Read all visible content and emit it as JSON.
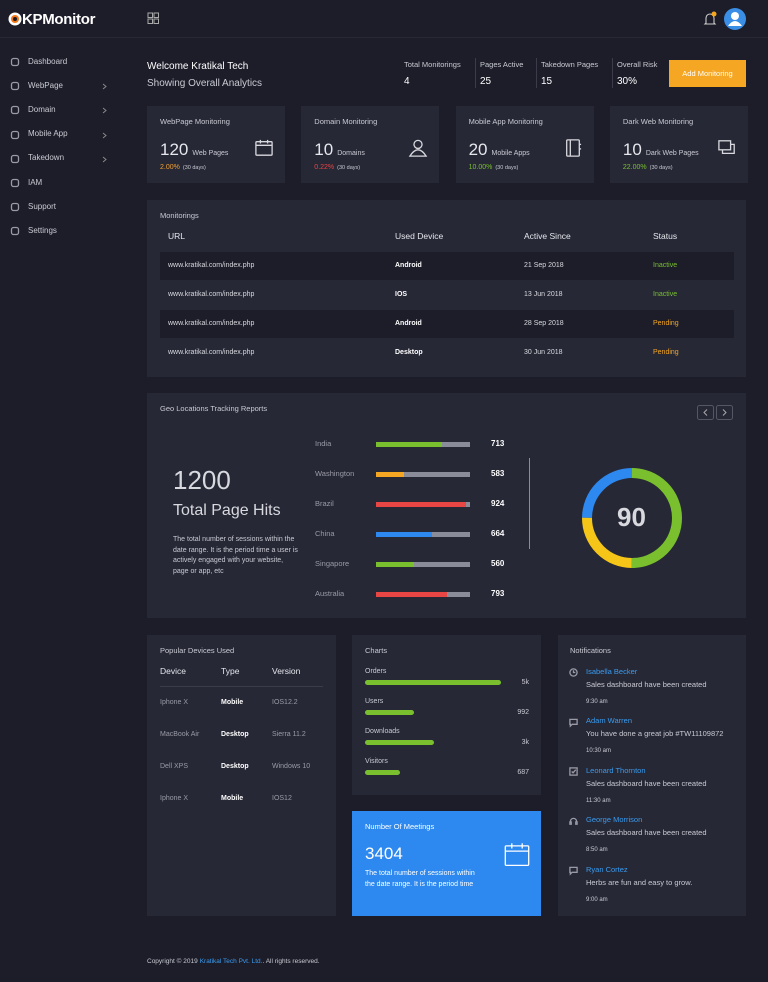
{
  "header": {
    "brand": "KPMonitor"
  },
  "sidebar": [
    {
      "label": "Dashboard",
      "submenu": false
    },
    {
      "label": "WebPage",
      "submenu": true
    },
    {
      "label": "Domain",
      "submenu": true
    },
    {
      "label": "Mobile App",
      "submenu": true
    },
    {
      "label": "Takedown",
      "submenu": true
    },
    {
      "label": "IAM",
      "submenu": false
    },
    {
      "label": "Support",
      "submenu": false
    },
    {
      "label": "Settings",
      "submenu": false
    }
  ],
  "welcome": {
    "title": "Welcome Kratikal Tech",
    "subtitle": "Showing Overall Analytics"
  },
  "stats": [
    {
      "label": "Total Monitorings",
      "value": 4
    },
    {
      "label": "Pages Active",
      "value": 25
    },
    {
      "label": "Takedown Pages",
      "value": 15
    },
    {
      "label": "Overall Risk",
      "value": "30%"
    }
  ],
  "add_button": "Add Monitoring",
  "cards": [
    {
      "title": "WebPage Monitoring",
      "count": 120,
      "unit": "Web Pages",
      "change": "2.00%",
      "change_color": "#f0a030",
      "period": "(30 days)",
      "icon": "calendar"
    },
    {
      "title": "Domain Monitoring",
      "count": 10,
      "unit": "Domains",
      "change": "0.22%",
      "change_color": "#e84545",
      "period": "(30 days)",
      "icon": "user"
    },
    {
      "title": "Mobile App Monitoring",
      "count": 20,
      "unit": "Mobile Apps",
      "change": "10.00%",
      "change_color": "#7ac02e",
      "period": "(30 days)",
      "icon": "book"
    },
    {
      "title": "Dark Web Monitoring",
      "count": 10,
      "unit": "Dark Web Pages",
      "change": "22.00%",
      "change_color": "#7ac02e",
      "period": "(30 days)",
      "icon": "layers"
    }
  ],
  "monitorings": {
    "title": "Monitorings",
    "columns": [
      "URL",
      "Used Device",
      "Active Since",
      "Status"
    ],
    "rows": [
      {
        "url": "www.kratikal.com/index.php",
        "device": "Android",
        "since": "21 Sep 2018",
        "status": "Inactive",
        "status_color": "#7ac02e"
      },
      {
        "url": "www.kratikal.com/index.php",
        "device": "IOS",
        "since": "13 Jun 2018",
        "status": "Inactive",
        "status_color": "#7ac02e"
      },
      {
        "url": "www.kratikal.com/index.php",
        "device": "Android",
        "since": "28 Sep 2018",
        "status": "Pending",
        "status_color": "#f5a623"
      },
      {
        "url": "www.kratikal.com/index.php",
        "device": "Desktop",
        "since": "30 Jun 2018",
        "status": "Pending",
        "status_color": "#f5a623"
      }
    ]
  },
  "geo": {
    "title": "Geo Locations Tracking Reports",
    "total": 1200,
    "total_label": "Total Page Hits",
    "description": "The total number of sessions within the date range. It is the period time a user is actively engaged with your website, page or app, etc",
    "rows": [
      {
        "name": "India",
        "value": 713,
        "color": "#7ac02e",
        "fill": 70
      },
      {
        "name": "Washington",
        "value": 583,
        "color": "#f5a623",
        "fill": 30
      },
      {
        "name": "Brazil",
        "value": 924,
        "color": "#e84545",
        "fill": 96
      },
      {
        "name": "China",
        "value": 664,
        "color": "#2d89ef",
        "fill": 60
      },
      {
        "name": "Singapore",
        "value": 560,
        "color": "#7ac02e",
        "fill": 40
      },
      {
        "name": "Australia",
        "value": 793,
        "color": "#e84545",
        "fill": 75
      }
    ],
    "donut": {
      "value": 90,
      "segments": [
        {
          "color": "#7ac02e",
          "value": 50
        },
        {
          "color": "#f5c518",
          "value": 25
        },
        {
          "color": "#2d89ef",
          "value": 25
        }
      ]
    }
  },
  "devices": {
    "title": "Popular Devices Used",
    "columns": [
      "Device",
      "Type",
      "Version"
    ],
    "rows": [
      [
        "Iphone X",
        "Mobile",
        "IOS12.2"
      ],
      [
        "MacBook Air",
        "Desktop",
        "Sierra 11.2"
      ],
      [
        "Dell XPS",
        "Desktop",
        "Windows 10"
      ],
      [
        "Iphone X",
        "Mobile",
        "IOS12"
      ]
    ]
  },
  "charts": {
    "title": "Charts",
    "items": [
      {
        "label": "Orders",
        "value": "5k",
        "fill": 100
      },
      {
        "label": "Users",
        "value": 992,
        "fill": 36
      },
      {
        "label": "Downloads",
        "value": "3k",
        "fill": 51
      },
      {
        "label": "Visitors",
        "value": 687,
        "fill": 26
      }
    ]
  },
  "meetings": {
    "title": "Number Of Meetings",
    "value": 3404,
    "description": "The total number of sessions within the date range. It is the period time"
  },
  "notifications": {
    "title": "Notifications",
    "items": [
      {
        "name": "Isabella Becker",
        "message": "Sales dashboard have been created",
        "time": "9:30 am",
        "icon": "clock"
      },
      {
        "name": "Adam Warren",
        "message": "You have done a great job #TW11109872",
        "time": "10:30 am",
        "icon": "chat"
      },
      {
        "name": "Leonard Thornton",
        "message": "Sales dashboard have been created",
        "time": "11:30 am",
        "icon": "check"
      },
      {
        "name": "George Morrison",
        "message": "Sales dashboard have been created",
        "time": "8:50 am",
        "icon": "headset"
      },
      {
        "name": "Ryan Cortez",
        "message": "Herbs are fun and easy to grow.",
        "time": "9:00 am",
        "icon": "chat"
      }
    ]
  },
  "footer": {
    "text": "Copyright © 2019",
    "link": "Kratikal Tech Pvt. Ltd.",
    "suffix": ". All rights reserved."
  }
}
